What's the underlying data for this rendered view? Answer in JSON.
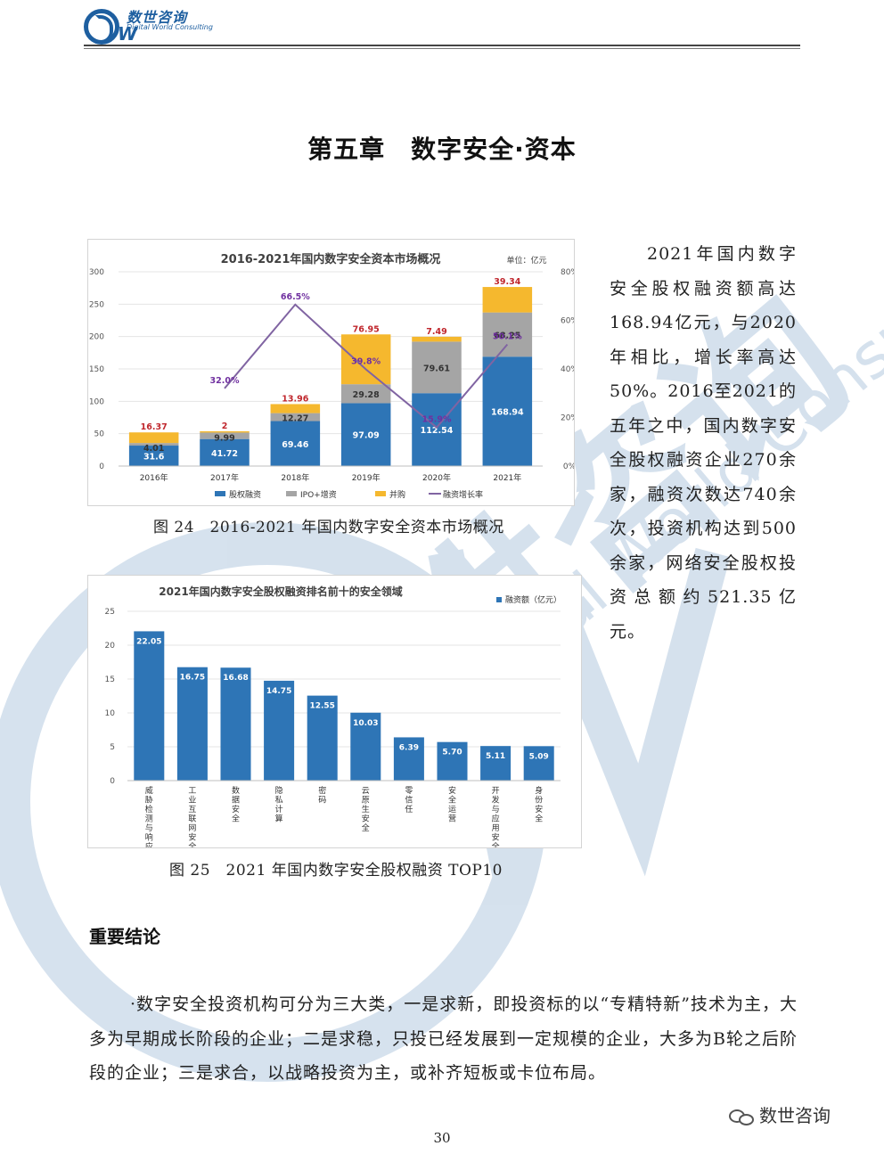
{
  "header": {
    "logo_cn": "数世咨询",
    "logo_en": "Digital World Consulting",
    "logo_mark": "DW"
  },
  "watermark": {
    "cn": "数世咨询",
    "en": "Digital World Consulting"
  },
  "chapter_title": "第五章　数字安全·资本",
  "side_paragraph": "2021年国内数字安全股权融资额高达168.94亿元，与2020年相比，增长率高达50%。2016至2021的五年之中，国内数字安全股权融资企业270余家，融资次数达740余次，投资机构达到500余家，网络安全股权投资总额约521.35亿元。",
  "figure24_caption": "图 24　2016-2021 年国内数字安全资本市场概况",
  "figure25_caption": "图 25　2021 年国内数字安全股权融资 TOP10",
  "section_heading": "重要结论",
  "conclusion_paragraph": "·数字安全投资机构可分为三大类，一是求新，即投资标的以“专精特新”技术为主，大多为早期成长阶段的企业；二是求稳，只投已经发展到一定规模的企业，大多为B轮之后阶段的企业；三是求合，以战略投资为主，或补齐短板或卡位布局。",
  "page_number": "30",
  "wechat_label": "数世咨询",
  "colors": {
    "equity": "#2e75b6",
    "ipo": "#a5a5a5",
    "ma": "#f5b82e",
    "growth": "#8064a2",
    "bar2": "#2e75b6",
    "title_text": "#404040"
  },
  "chart_data": [
    {
      "type": "bar",
      "stacked": true,
      "title": "2016-2021年国内数字安全资本市场概况",
      "unit_label": "单位：亿元",
      "categories": [
        "2016年",
        "2017年",
        "2018年",
        "2019年",
        "2020年",
        "2021年"
      ],
      "ylim": [
        0,
        300
      ],
      "yticks": [
        "0",
        "50",
        "100",
        "150",
        "200",
        "250",
        "300"
      ],
      "y2lim": [
        0,
        80
      ],
      "y2ticks": [
        "0%",
        "20%",
        "40%",
        "60%",
        "80%"
      ],
      "series": [
        {
          "name": "股权融资",
          "values": [
            31.6,
            41.72,
            69.46,
            97.09,
            112.54,
            168.94
          ],
          "labels": [
            "31.6",
            "41.72",
            "69.46",
            "97.09",
            "112.54",
            "168.94"
          ]
        },
        {
          "name": "IPO+增资",
          "values": [
            4.01,
            9.99,
            12.27,
            29.28,
            79.61,
            68.25
          ],
          "labels": [
            "4.01",
            "9.99",
            "12.27",
            "29.28",
            "79.61",
            "68.25"
          ]
        },
        {
          "name": "并购",
          "values": [
            16.37,
            2,
            13.96,
            76.95,
            7.49,
            39.34
          ],
          "labels": [
            "16.37",
            "2",
            "13.96",
            "76.95",
            "7.49",
            "39.34"
          ]
        }
      ],
      "line_series": {
        "name": "融资增长率",
        "values": [
          null,
          32.0,
          66.5,
          39.8,
          15.9,
          50.1
        ],
        "labels": [
          "",
          "32.0%",
          "66.5%",
          "39.8%",
          "15.9%",
          "50.1%"
        ]
      },
      "legend": [
        "股权融资",
        "IPO+增资",
        "并购",
        "融资增长率"
      ]
    },
    {
      "type": "bar",
      "title": "2021年国内数字安全股权融资排名前十的安全领域",
      "legend": [
        "融资额（亿元）"
      ],
      "categories": [
        "威胁检测与响应",
        "工业互联网安全",
        "数据安全",
        "隐私计算",
        "密码",
        "云原生安全",
        "零信任",
        "安全运营",
        "开发与应用安全",
        "身份安全"
      ],
      "values": [
        22.05,
        16.75,
        16.68,
        14.75,
        12.55,
        10.03,
        6.39,
        5.7,
        5.11,
        5.09
      ],
      "labels": [
        "22.05",
        "16.75",
        "16.68",
        "14.75",
        "12.55",
        "10.03",
        "6.39",
        "5.70",
        "5.11",
        "5.09"
      ],
      "ylim": [
        0,
        25
      ],
      "yticks": [
        "0",
        "5",
        "10",
        "15",
        "20",
        "25"
      ]
    }
  ]
}
